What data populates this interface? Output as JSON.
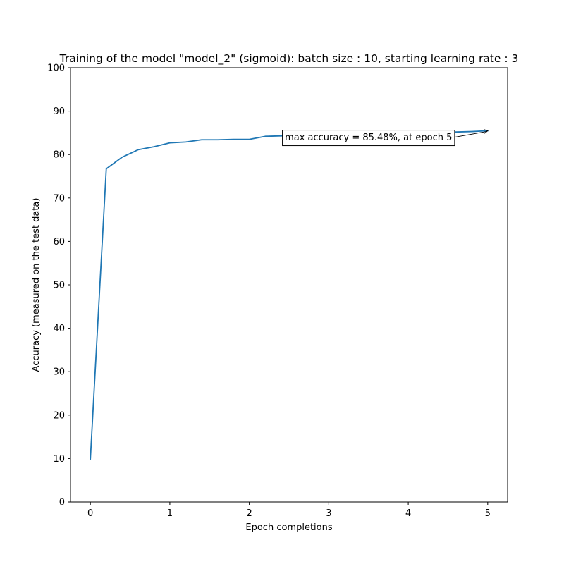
{
  "chart_data": {
    "type": "line",
    "title": "Training of the model \"model_2\" (sigmoid): batch size : 10, starting learning rate : 3",
    "xlabel": "Epoch completions",
    "ylabel": "Accuracy (measured on the test data)",
    "xlim": [
      -0.25,
      5.25
    ],
    "ylim": [
      0,
      100
    ],
    "xticks": [
      0,
      1,
      2,
      3,
      4,
      5
    ],
    "yticks": [
      0,
      10,
      20,
      30,
      40,
      50,
      60,
      70,
      80,
      90,
      100
    ],
    "grid": false,
    "series": [
      {
        "color": "#1f77b4",
        "x": [
          0,
          0.2,
          0.4,
          0.6,
          0.8,
          1.0,
          1.2,
          1.4,
          1.6,
          1.8,
          2.0,
          2.2,
          2.4,
          2.6,
          2.8,
          3.0,
          3.2,
          3.4,
          3.6,
          3.8,
          4.0,
          4.2,
          4.4,
          4.6,
          4.8,
          5.0
        ],
        "y": [
          9.9,
          76.7,
          79.4,
          81.1,
          81.8,
          82.7,
          82.9,
          83.4,
          83.4,
          83.5,
          83.5,
          84.2,
          84.3,
          84.4,
          84.5,
          84.6,
          84.7,
          84.8,
          84.9,
          84.9,
          85.0,
          85.1,
          85.2,
          85.2,
          85.3,
          85.48
        ]
      }
    ],
    "annotations": [
      {
        "text": "max accuracy = 85.48%, at epoch 5",
        "x": 5,
        "y": 85.48,
        "text_x": 3.5,
        "text_y": 84
      }
    ]
  }
}
